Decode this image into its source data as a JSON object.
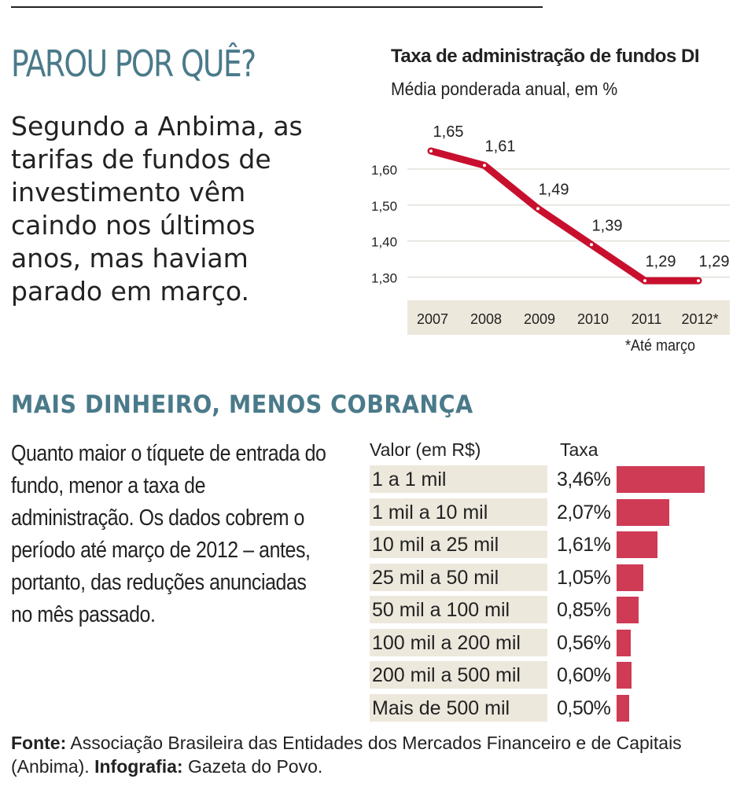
{
  "header": {
    "title": "PAROU POR QUÊ?",
    "text": "Segundo a Anbima, as tarifas de fundos de investimento vêm caindo nos últimos anos, mas haviam parado em março."
  },
  "colors": {
    "title_blue": "#4a7a8a",
    "line_red": "#c8102e",
    "bar_red": "#cf3a55",
    "label_bg": "#ede8dc",
    "axis_band": "#ede8dc",
    "grid": "#d8d3c8"
  },
  "chart_data": [
    {
      "type": "line",
      "title": "Taxa de administração de fundos DI",
      "subtitle": "Média ponderada anual, em %",
      "categories": [
        "2007",
        "2008",
        "2009",
        "2010",
        "2011",
        "2012*"
      ],
      "values": [
        1.65,
        1.61,
        1.49,
        1.39,
        1.29,
        1.29
      ],
      "value_labels": [
        "1,65",
        "1,61",
        "1,49",
        "1,39",
        "1,29",
        "1,29"
      ],
      "yticks": [
        1.6,
        1.5,
        1.4,
        1.3
      ],
      "ytick_labels": [
        "1,60",
        "1,50",
        "1,40",
        "1,30"
      ],
      "ylim": [
        1.24,
        1.72
      ],
      "grid": true,
      "note": "*Até março"
    },
    {
      "type": "bar",
      "title": "MAIS DINHEIRO, MENOS COBRANÇA",
      "orientation": "horizontal",
      "column_headers": [
        "Valor (em R$)",
        "Taxa"
      ],
      "categories": [
        "1 a 1 mil",
        "1 mil a 10 mil",
        "10 mil a 25 mil",
        "25 mil a 50 mil",
        "50 mil a 100 mil",
        "100 mil a 200 mil",
        "200 mil a 500 mil",
        "Mais de 500 mil"
      ],
      "values": [
        3.46,
        2.07,
        1.61,
        1.05,
        0.85,
        0.56,
        0.6,
        0.5
      ],
      "value_labels": [
        "3,46%",
        "2,07%",
        "1,61%",
        "1,05%",
        "0,85%",
        "0,56%",
        "0,60%",
        "0,50%"
      ],
      "xlim": [
        0,
        3.46
      ]
    }
  ],
  "section2": {
    "title": "MAIS DINHEIRO, MENOS COBRANÇA",
    "text": "Quanto maior o tíquete de entrada do fundo, menor a taxa de administração. Os dados cobrem o período até março de 2012 – antes, portanto, das reduções anunciadas no mês passado."
  },
  "footer": {
    "source_label": "Fonte:",
    "source_text": "Associação Brasileira das Entidades dos Mercados Financeiro e de Capitais (Anbima).",
    "credit_label": "Infografia:",
    "credit_text": "Gazeta do Povo."
  }
}
